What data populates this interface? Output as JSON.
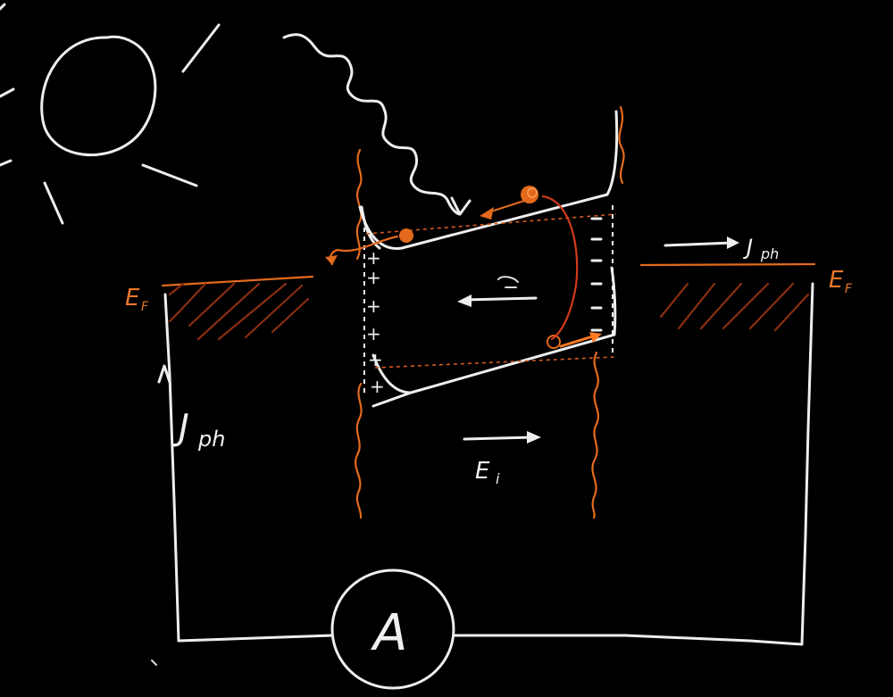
{
  "labels": {
    "fermi_left": "E",
    "fermi_left_sub": "F",
    "fermi_right": "E",
    "fermi_right_sub": "F",
    "jph_top": "J",
    "jph_top_sub": "ph",
    "jph_left": "J",
    "jph_left_sub": "ph",
    "field_label": "E",
    "field_sub": "i",
    "ammeter": "A",
    "plus_sign": "+",
    "minus_sign": "–"
  },
  "colors": {
    "chalk": "#eeeeee",
    "orange": "#e36a1c",
    "red": "#d23a1c",
    "hatch": "#8a2e12",
    "background": "#000000"
  },
  "icons": {
    "sun": "sun-icon",
    "photon": "wavy-photon-arrow",
    "ammeter": "ammeter-circle"
  }
}
